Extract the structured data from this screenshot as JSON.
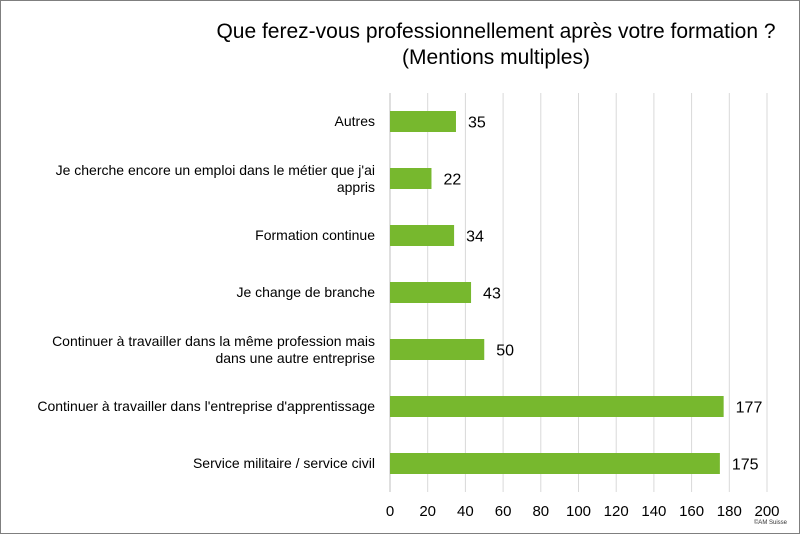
{
  "chart_data": {
    "type": "bar",
    "orientation": "horizontal",
    "title": "Que ferez-vous professionnellement après votre formation ?",
    "subtitle": "(Mentions multiples)",
    "categories": [
      "Autres",
      "Je cherche encore un emploi dans le métier que j'ai appris",
      "Formation continue",
      "Je change de branche",
      "Continuer à travailler dans la même profession mais dans une autre entreprise",
      "Continuer à travailler dans l'entreprise d'apprentissage",
      "Service militaire / service civil"
    ],
    "category_lines": [
      [
        "Autres"
      ],
      [
        "Je cherche encore un emploi dans le métier que j'ai",
        "appris"
      ],
      [
        "Formation continue"
      ],
      [
        "Je change de branche"
      ],
      [
        "Continuer à travailler dans la même profession mais",
        "dans une autre entreprise"
      ],
      [
        "Continuer à travailler dans l'entreprise d'apprentissage"
      ],
      [
        "Service militaire / service civil"
      ]
    ],
    "values": [
      35,
      22,
      34,
      43,
      50,
      177,
      175
    ],
    "xlim": [
      0,
      200
    ],
    "xticks": [
      0,
      20,
      40,
      60,
      80,
      100,
      120,
      140,
      160,
      180,
      200
    ],
    "grid": "vertical",
    "legend": "none",
    "bar_color": "#77b82e",
    "grid_color": "#d9d9d9"
  },
  "credit": "©AM Suisse"
}
